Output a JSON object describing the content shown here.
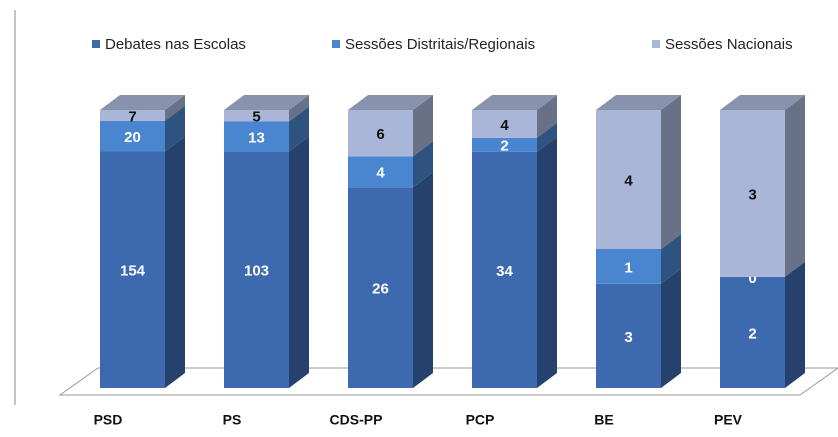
{
  "chart_data": {
    "type": "stacked_percent_bar_3d",
    "categories": [
      "PSD",
      "PS",
      "CDS-PP",
      "PCP",
      "BE",
      "PEV"
    ],
    "series": [
      {
        "name": "Debates nas Escolas",
        "color": "#3d6aae",
        "values": [
          154,
          103,
          26,
          34,
          3,
          2
        ]
      },
      {
        "name": "Sessões Distritais/Regionais",
        "color": "#4a86d0",
        "values": [
          20,
          13,
          4,
          2,
          1,
          0
        ]
      },
      {
        "name": "Sessões Nacionais",
        "color": "#aab6d8",
        "values": [
          7,
          5,
          6,
          4,
          4,
          3
        ]
      }
    ]
  }
}
